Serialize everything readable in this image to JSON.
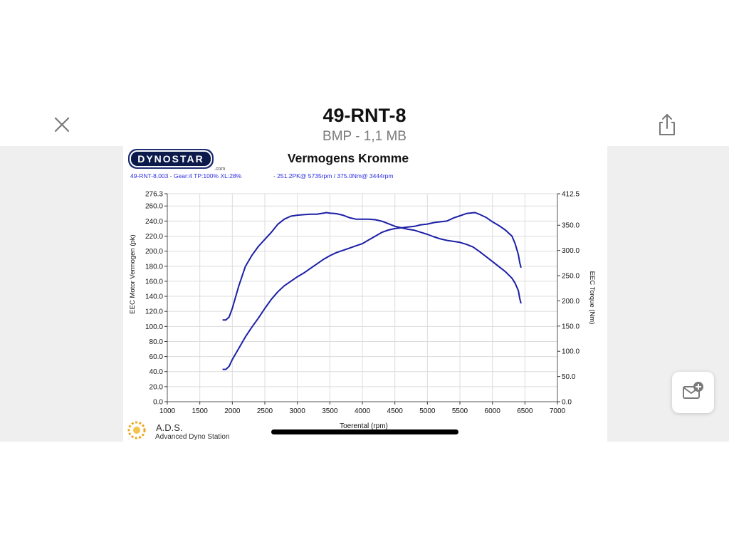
{
  "header": {
    "title": "49-RNT-8",
    "meta": "BMP - 1,1 MB",
    "close_icon": "close-icon",
    "share_icon": "share-icon"
  },
  "image": {
    "brand": "DYNOSTAR",
    "brand_suffix": ".com",
    "footer_brand": "A.D.S.",
    "footer_brand_full": "Advanced Dyno Station"
  },
  "chart_data": {
    "type": "line",
    "title": "Vermogens Kromme",
    "subtitle_left": "49-RNT-8.003 - Gear:4  TP:100%  XL:28%",
    "subtitle_right": "- 251.2PK@ 5735rpm / 375.0Nm@ 3444rpm",
    "xlabel": "Toerental (rpm)",
    "ylabel_left": "EEC Motor Vermogen (pk)",
    "ylabel_right": "EEC Torque (Nm)",
    "xlim": [
      1000,
      7000
    ],
    "ylim_left": [
      0,
      276.3
    ],
    "ylim_right": [
      0,
      412.5
    ],
    "xticks": [
      "1000",
      "1500",
      "2000",
      "2500",
      "3000",
      "3500",
      "4000",
      "4500",
      "5000",
      "5500",
      "6000",
      "6500",
      "7000"
    ],
    "yticks_left": [
      "276.3",
      "260.0",
      "240.0",
      "220.0",
      "200.0",
      "180.0",
      "160.0",
      "140.0",
      "120.0",
      "100.0",
      "80.0",
      "60.0",
      "40.0",
      "20.0",
      "0.0"
    ],
    "yticks_right": [
      "412.5",
      "350.0",
      "300.0",
      "250.0",
      "200.0",
      "150.0",
      "100.0",
      "50.0",
      "0.0"
    ],
    "grid": true,
    "line_color": "#1c1fa6",
    "series": [
      {
        "axis": "left",
        "x": [
          1850,
          1900,
          1950,
          2000,
          2100,
          2200,
          2300,
          2400,
          2500,
          2600,
          2700,
          2800,
          2900,
          3000,
          3100,
          3200,
          3300,
          3400,
          3500,
          3600,
          3700,
          3800,
          3900,
          4000,
          4100,
          4200,
          4300,
          4400,
          4500,
          4600,
          4700,
          4800,
          4900,
          5000,
          5100,
          5200,
          5300,
          5400,
          5500,
          5600,
          5700,
          5735,
          5800,
          5900,
          6000,
          6100,
          6200,
          6300,
          6350,
          6400,
          6420,
          6440
        ],
        "y": [
          43,
          43,
          47,
          56,
          71,
          86,
          99,
          111,
          124,
          136,
          146,
          154,
          160,
          166,
          171,
          177,
          183,
          189,
          194,
          198,
          201,
          204,
          207,
          210,
          215,
          220,
          225,
          228,
          230,
          231,
          232,
          233,
          235,
          236,
          238,
          239,
          240,
          244,
          247,
          250,
          251,
          251.2,
          249,
          245,
          239,
          234,
          228,
          220,
          210,
          195,
          185,
          178
        ]
      },
      {
        "axis": "right",
        "x": [
          1850,
          1900,
          1950,
          2000,
          2100,
          2200,
          2300,
          2400,
          2500,
          2600,
          2700,
          2800,
          2900,
          3000,
          3100,
          3200,
          3300,
          3400,
          3444,
          3500,
          3600,
          3700,
          3800,
          3900,
          4000,
          4100,
          4200,
          4300,
          4400,
          4500,
          4600,
          4700,
          4800,
          4900,
          5000,
          5100,
          5200,
          5300,
          5400,
          5500,
          5600,
          5700,
          5800,
          5900,
          6000,
          6100,
          6200,
          6300,
          6350,
          6400,
          6420,
          6440
        ],
        "y": [
          162,
          162,
          168,
          185,
          230,
          268,
          290,
          308,
          322,
          336,
          352,
          362,
          368,
          370,
          371,
          372,
          372,
          374,
          375,
          374,
          373,
          370,
          365,
          362,
          362,
          362,
          361,
          358,
          353,
          348,
          345,
          342,
          340,
          336,
          332,
          327,
          323,
          320,
          318,
          316,
          312,
          307,
          298,
          288,
          278,
          268,
          258,
          245,
          235,
          220,
          205,
          195
        ]
      }
    ]
  }
}
